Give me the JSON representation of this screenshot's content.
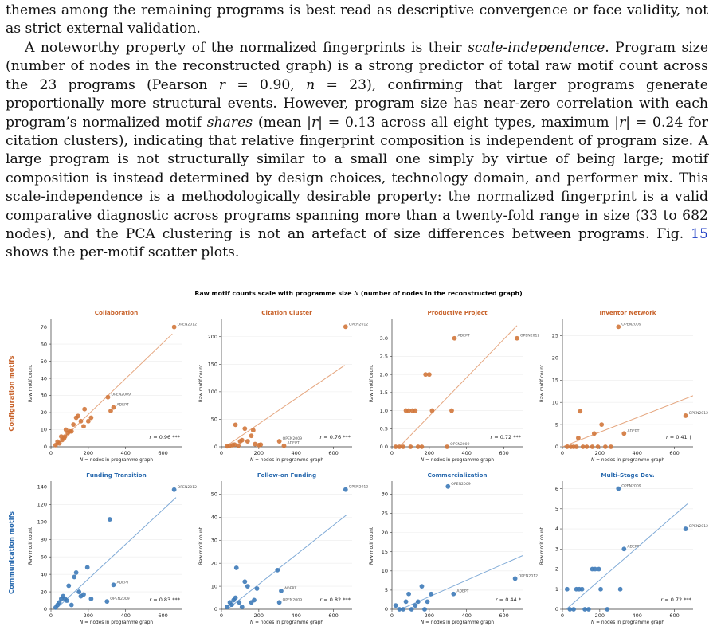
{
  "text": {
    "p1": "themes among the remaining programs is best read as descriptive convergence or face validity, not as strict external validation.",
    "p2a": "A noteworthy property of the normalized fingerprints is their ",
    "p2b": "scale-independence",
    "p2c": ". Program size (number of nodes in the reconstructed graph) is a strong predictor of total raw motif count across the 23 programs (Pearson ",
    "p2r": "r",
    "p2d": " = 0.90, ",
    "p2n": "n",
    "p2e": " = 23), confirming that larger programs generate proportionally more structural events. However, program size has near-zero correlation with each program’s normalized motif ",
    "p2f": "shares",
    "p2g": " (mean |",
    "p2h": "| = 0.13 across all eight types, maximum |",
    "p2i": "| = 0.24 for citation clusters), indicating that relative fingerprint composition is independent of program size. A large program is not structurally similar to a small one simply by virtue of being large; motif composition is instead determined by design choices, technology domain, and performer mix. This scale-independence is a methodologically desirable property: the normalized fingerprint is a valid comparative diagnostic across programs spanning more than a twenty-fold range in size (33 to 682 nodes), and the PCA clustering is not an artefact of size differences between programs. Fig. ",
    "p2link": "15",
    "p2j": " shows the per-motif scatter plots."
  },
  "figure": {
    "title_a": "Raw motif counts scale with programme size ",
    "title_n": "N",
    "title_b": " (number of nodes in the reconstructed graph)",
    "xlabel_n": "N",
    "xlabel_rest": " = nodes in programme graph",
    "ylabel": "Raw motif count",
    "row_labels": [
      "Configuration motifs",
      "Communication motifs"
    ],
    "colors": {
      "config": "#d2773b",
      "config_line": "#e5a67f",
      "comm": "#3d7ab8",
      "comm_line": "#7ea9d6",
      "config_title": "#c8622a",
      "comm_title": "#2869ae"
    }
  },
  "chart_data": [
    {
      "type": "scatter",
      "title": "Collaboration",
      "row": "Configuration motifs",
      "xlim": [
        0,
        700
      ],
      "ylim": [
        0,
        74
      ],
      "xticks": [
        0,
        200,
        400,
        600
      ],
      "yticks": [
        0,
        10,
        20,
        30,
        40,
        50,
        60,
        70
      ],
      "fit": [
        [
          0,
          -2
        ],
        [
          650,
          66
        ]
      ],
      "r_label": "r = 0.96 ***",
      "points": [
        [
          25,
          1
        ],
        [
          35,
          3
        ],
        [
          45,
          2
        ],
        [
          55,
          6
        ],
        [
          60,
          4
        ],
        [
          70,
          5
        ],
        [
          75,
          6
        ],
        [
          80,
          10
        ],
        [
          90,
          8
        ],
        [
          100,
          9
        ],
        [
          110,
          9
        ],
        [
          120,
          13
        ],
        [
          135,
          17
        ],
        [
          145,
          18
        ],
        [
          160,
          15
        ],
        [
          175,
          12
        ],
        [
          180,
          22
        ],
        [
          200,
          15
        ],
        [
          215,
          17
        ],
        [
          305,
          29
        ],
        [
          320,
          21
        ],
        [
          335,
          23
        ],
        [
          660,
          70
        ]
      ],
      "labels": [
        {
          "x": 660,
          "y": 70,
          "text": "OPEN2012"
        },
        {
          "x": 305,
          "y": 29,
          "text": "OPEN2009"
        },
        {
          "x": 335,
          "y": 23,
          "text": "ADEPT"
        }
      ]
    },
    {
      "type": "scatter",
      "title": "Citation Cluster",
      "row": "Configuration motifs",
      "xlim": [
        0,
        700
      ],
      "ylim": [
        0,
        230
      ],
      "xticks": [
        0,
        200,
        400,
        600
      ],
      "yticks": [
        0,
        50,
        100,
        150,
        200
      ],
      "fit": [
        [
          20,
          0
        ],
        [
          660,
          148
        ]
      ],
      "r_label": "r = 0.76 ***",
      "points": [
        [
          30,
          1
        ],
        [
          45,
          2
        ],
        [
          60,
          3
        ],
        [
          70,
          4
        ],
        [
          75,
          40
        ],
        [
          90,
          2
        ],
        [
          100,
          10
        ],
        [
          110,
          12
        ],
        [
          125,
          33
        ],
        [
          140,
          10
        ],
        [
          160,
          20
        ],
        [
          170,
          30
        ],
        [
          180,
          5
        ],
        [
          200,
          3
        ],
        [
          210,
          4
        ],
        [
          310,
          10
        ],
        [
          335,
          2
        ],
        [
          665,
          218
        ]
      ],
      "labels": [
        {
          "x": 665,
          "y": 218,
          "text": "OPEN2012"
        },
        {
          "x": 310,
          "y": 10,
          "text": "OPEN2009"
        },
        {
          "x": 335,
          "y": 2,
          "text": "ADEPT"
        }
      ]
    },
    {
      "type": "scatter",
      "title": "Productive Project",
      "row": "Configuration motifs",
      "xlim": [
        0,
        700
      ],
      "ylim": [
        0,
        3.5
      ],
      "xticks": [
        0,
        200,
        400,
        600
      ],
      "yticks": [
        0,
        0.5,
        1.0,
        1.5,
        2.0,
        2.5,
        3.0
      ],
      "fit": [
        [
          40,
          0
        ],
        [
          670,
          3.35
        ]
      ],
      "r_label": "r = 0.72 ***",
      "points": [
        [
          20,
          0
        ],
        [
          40,
          0
        ],
        [
          60,
          0
        ],
        [
          75,
          1
        ],
        [
          90,
          1
        ],
        [
          100,
          0
        ],
        [
          110,
          1
        ],
        [
          125,
          1
        ],
        [
          140,
          0
        ],
        [
          160,
          0
        ],
        [
          180,
          2
        ],
        [
          200,
          2
        ],
        [
          215,
          1
        ],
        [
          320,
          1
        ],
        [
          335,
          3
        ],
        [
          670,
          3
        ],
        [
          295,
          0
        ]
      ],
      "labels": [
        {
          "x": 335,
          "y": 3,
          "text": "ADEPT"
        },
        {
          "x": 670,
          "y": 3,
          "text": "OPEN2012"
        },
        {
          "x": 295,
          "y": 0,
          "text": "OPEN2009"
        }
      ]
    },
    {
      "type": "scatter",
      "title": "Inventor Network",
      "row": "Configuration motifs",
      "xlim": [
        0,
        700
      ],
      "ylim": [
        0,
        28.5
      ],
      "xticks": [
        0,
        200,
        400,
        600
      ],
      "yticks": [
        0,
        5,
        10,
        15,
        20,
        25
      ],
      "fit": [
        [
          0,
          0
        ],
        [
          700,
          11.5
        ]
      ],
      "r_label": "r = 0.41 †",
      "points": [
        [
          25,
          0
        ],
        [
          45,
          0
        ],
        [
          60,
          0
        ],
        [
          75,
          0
        ],
        [
          85,
          2
        ],
        [
          95,
          8
        ],
        [
          110,
          0
        ],
        [
          130,
          0
        ],
        [
          160,
          0
        ],
        [
          170,
          3
        ],
        [
          190,
          0
        ],
        [
          210,
          5
        ],
        [
          230,
          0
        ],
        [
          260,
          0
        ],
        [
          300,
          27
        ],
        [
          330,
          3
        ],
        [
          660,
          7
        ]
      ],
      "labels": [
        {
          "x": 300,
          "y": 27,
          "text": "OPEN2009"
        },
        {
          "x": 330,
          "y": 3,
          "text": "ADEPT"
        },
        {
          "x": 660,
          "y": 7,
          "text": "OPEN2012"
        }
      ]
    },
    {
      "type": "scatter",
      "title": "Funding Transition",
      "row": "Communication motifs",
      "xlim": [
        0,
        700
      ],
      "ylim": [
        0,
        145
      ],
      "xticks": [
        0,
        200,
        400,
        600
      ],
      "yticks": [
        0,
        20,
        40,
        60,
        80,
        100,
        120,
        140
      ],
      "fit": [
        [
          0,
          -5
        ],
        [
          670,
          128
        ]
      ],
      "r_label": "r = 0.83 ***",
      "points": [
        [
          25,
          2
        ],
        [
          35,
          5
        ],
        [
          45,
          8
        ],
        [
          55,
          12
        ],
        [
          65,
          15
        ],
        [
          75,
          12
        ],
        [
          85,
          10
        ],
        [
          95,
          27
        ],
        [
          110,
          5
        ],
        [
          125,
          37
        ],
        [
          135,
          42
        ],
        [
          150,
          20
        ],
        [
          160,
          15
        ],
        [
          175,
          17
        ],
        [
          195,
          48
        ],
        [
          215,
          12
        ],
        [
          315,
          103
        ],
        [
          335,
          28
        ],
        [
          300,
          9
        ],
        [
          660,
          137
        ]
      ],
      "labels": [
        {
          "x": 660,
          "y": 137,
          "text": "OPEN2012"
        },
        {
          "x": 335,
          "y": 28,
          "text": "ADEPT"
        },
        {
          "x": 300,
          "y": 9,
          "text": "OPEN2009"
        }
      ]
    },
    {
      "type": "scatter",
      "title": "Follow-on Funding",
      "row": "Communication motifs",
      "xlim": [
        0,
        700
      ],
      "ylim": [
        0,
        55
      ],
      "xticks": [
        0,
        200,
        400,
        600
      ],
      "yticks": [
        0,
        10,
        20,
        30,
        40,
        50
      ],
      "fit": [
        [
          0,
          -2
        ],
        [
          670,
          41
        ]
      ],
      "r_label": "r = 0.82 ***",
      "points": [
        [
          30,
          1
        ],
        [
          45,
          3
        ],
        [
          55,
          2
        ],
        [
          65,
          4
        ],
        [
          75,
          5
        ],
        [
          80,
          18
        ],
        [
          95,
          3
        ],
        [
          110,
          1
        ],
        [
          125,
          12
        ],
        [
          140,
          10
        ],
        [
          160,
          3
        ],
        [
          175,
          4
        ],
        [
          190,
          9
        ],
        [
          300,
          17
        ],
        [
          320,
          8
        ],
        [
          310,
          3
        ],
        [
          665,
          52
        ]
      ],
      "labels": [
        {
          "x": 665,
          "y": 52,
          "text": "OPEN2012"
        },
        {
          "x": 320,
          "y": 8,
          "text": "ADEPT"
        },
        {
          "x": 310,
          "y": 3,
          "text": "OPEN2009"
        }
      ]
    },
    {
      "type": "scatter",
      "title": "Commercialization",
      "row": "Communication motifs",
      "xlim": [
        0,
        700
      ],
      "ylim": [
        0,
        33
      ],
      "xticks": [
        0,
        200,
        400,
        600
      ],
      "yticks": [
        0,
        5,
        10,
        15,
        20,
        25,
        30
      ],
      "fit": [
        [
          0,
          -1
        ],
        [
          700,
          14
        ]
      ],
      "r_label": "r = 0.44 *",
      "points": [
        [
          20,
          1
        ],
        [
          40,
          0
        ],
        [
          60,
          0
        ],
        [
          75,
          2
        ],
        [
          90,
          4
        ],
        [
          105,
          0
        ],
        [
          125,
          1
        ],
        [
          140,
          2
        ],
        [
          160,
          6
        ],
        [
          175,
          0
        ],
        [
          190,
          2
        ],
        [
          210,
          4
        ],
        [
          300,
          32
        ],
        [
          330,
          4
        ],
        [
          660,
          8
        ]
      ],
      "labels": [
        {
          "x": 300,
          "y": 32,
          "text": "OPEN2009"
        },
        {
          "x": 330,
          "y": 4,
          "text": "ADEPT"
        },
        {
          "x": 660,
          "y": 8,
          "text": "OPEN2012"
        }
      ]
    },
    {
      "type": "scatter",
      "title": "Multi-Stage Dev.",
      "row": "Communication motifs",
      "xlim": [
        0,
        700
      ],
      "ylim": [
        0,
        6.3
      ],
      "xticks": [
        0,
        200,
        400,
        600
      ],
      "yticks": [
        0,
        1,
        2,
        3,
        4,
        5,
        6
      ],
      "fit": [
        [
          20,
          0
        ],
        [
          670,
          5.25
        ]
      ],
      "r_label": "r = 0.72 ***",
      "points": [
        [
          25,
          1
        ],
        [
          40,
          0
        ],
        [
          60,
          0
        ],
        [
          75,
          1
        ],
        [
          90,
          1
        ],
        [
          105,
          1
        ],
        [
          120,
          0
        ],
        [
          140,
          0
        ],
        [
          160,
          2
        ],
        [
          175,
          2
        ],
        [
          195,
          2
        ],
        [
          205,
          1
        ],
        [
          240,
          0
        ],
        [
          300,
          6
        ],
        [
          330,
          3
        ],
        [
          310,
          1
        ],
        [
          660,
          4
        ]
      ],
      "labels": [
        {
          "x": 300,
          "y": 6,
          "text": "OPEN2009"
        },
        {
          "x": 330,
          "y": 3,
          "text": "ADEPT"
        },
        {
          "x": 660,
          "y": 4,
          "text": "OPEN2012"
        }
      ]
    }
  ]
}
